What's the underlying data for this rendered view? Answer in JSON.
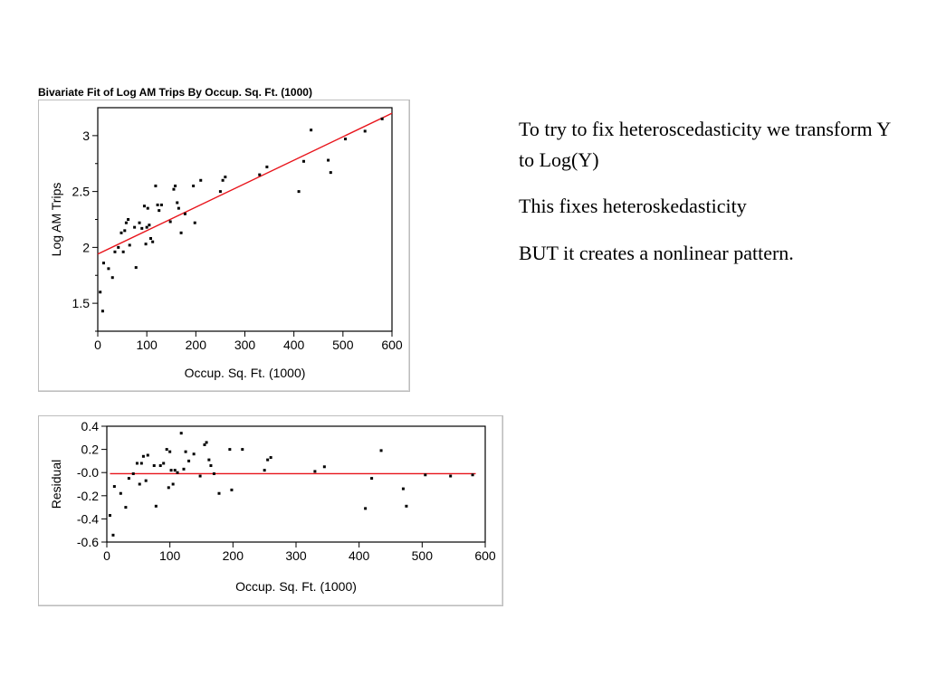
{
  "slide": {
    "paragraphs": [
      "To try to fix heteroscedasticity we transform Y to Log(Y)",
      "This fixes heteroskedasticity",
      "BUT it creates a nonlinear pattern."
    ]
  },
  "colors": {
    "fit_line": "#e8141b",
    "points": "#000000",
    "frame": "#000000"
  },
  "chart_data": [
    {
      "type": "scatter",
      "title": "Bivariate Fit of Log AM Trips By Occup. Sq. Ft. (1000)",
      "xlabel": "Occup. Sq. Ft. (1000)",
      "ylabel": "Log AM Trips",
      "xlim": [
        0,
        600
      ],
      "ylim": [
        1.25,
        3.25
      ],
      "x_ticks": [
        0,
        100,
        200,
        300,
        400,
        500,
        600
      ],
      "y_ticks": [
        1.5,
        2,
        2.5,
        3
      ],
      "x_tick_labels": [
        "0",
        "100",
        "200",
        "300",
        "400",
        "500",
        "600"
      ],
      "y_tick_labels": [
        "1.5",
        "2",
        "2.5",
        "3"
      ],
      "fit_line": {
        "x": [
          0,
          600
        ],
        "y": [
          1.94,
          3.2
        ]
      },
      "points": [
        [
          5,
          1.6
        ],
        [
          10,
          1.43
        ],
        [
          12,
          1.86
        ],
        [
          22,
          1.81
        ],
        [
          30,
          1.73
        ],
        [
          35,
          1.96
        ],
        [
          42,
          2.0
        ],
        [
          48,
          2.13
        ],
        [
          52,
          1.96
        ],
        [
          55,
          2.15
        ],
        [
          58,
          2.22
        ],
        [
          62,
          2.25
        ],
        [
          65,
          2.02
        ],
        [
          75,
          2.18
        ],
        [
          78,
          1.82
        ],
        [
          85,
          2.22
        ],
        [
          90,
          2.17
        ],
        [
          95,
          2.37
        ],
        [
          98,
          2.03
        ],
        [
          100,
          2.18
        ],
        [
          102,
          2.35
        ],
        [
          105,
          2.2
        ],
        [
          108,
          2.08
        ],
        [
          112,
          2.05
        ],
        [
          118,
          2.55
        ],
        [
          122,
          2.38
        ],
        [
          125,
          2.33
        ],
        [
          130,
          2.38
        ],
        [
          148,
          2.23
        ],
        [
          155,
          2.52
        ],
        [
          158,
          2.55
        ],
        [
          162,
          2.4
        ],
        [
          165,
          2.35
        ],
        [
          170,
          2.13
        ],
        [
          178,
          2.3
        ],
        [
          195,
          2.55
        ],
        [
          198,
          2.22
        ],
        [
          210,
          2.6
        ],
        [
          250,
          2.5
        ],
        [
          255,
          2.6
        ],
        [
          260,
          2.63
        ],
        [
          330,
          2.65
        ],
        [
          345,
          2.72
        ],
        [
          410,
          2.5
        ],
        [
          420,
          2.77
        ],
        [
          435,
          3.05
        ],
        [
          470,
          2.78
        ],
        [
          475,
          2.67
        ],
        [
          505,
          2.97
        ],
        [
          545,
          3.04
        ],
        [
          580,
          3.15
        ]
      ]
    },
    {
      "type": "scatter",
      "xlabel": "Occup. Sq. Ft. (1000)",
      "ylabel": "Residual",
      "xlim": [
        0,
        600
      ],
      "ylim": [
        -0.6,
        0.4
      ],
      "x_ticks": [
        0,
        100,
        200,
        300,
        400,
        500,
        600
      ],
      "y_ticks": [
        0.4,
        0.2,
        0,
        -0.2,
        -0.4,
        -0.6
      ],
      "x_tick_labels": [
        "0",
        "100",
        "200",
        "300",
        "400",
        "500",
        "600"
      ],
      "y_tick_labels": [
        "0.4",
        "0.2",
        "-0.0",
        "-0.2",
        "-0.4",
        "-0.6"
      ],
      "zero_line": {
        "x": [
          5,
          585
        ],
        "y": [
          -0.01,
          -0.01
        ]
      },
      "points": [
        [
          5,
          -0.37
        ],
        [
          10,
          -0.54
        ],
        [
          12,
          -0.12
        ],
        [
          22,
          -0.18
        ],
        [
          30,
          -0.3
        ],
        [
          35,
          -0.05
        ],
        [
          42,
          -0.01
        ],
        [
          48,
          0.08
        ],
        [
          52,
          -0.1
        ],
        [
          55,
          0.08
        ],
        [
          58,
          0.14
        ],
        [
          62,
          -0.07
        ],
        [
          65,
          0.15
        ],
        [
          75,
          0.06
        ],
        [
          78,
          -0.29
        ],
        [
          85,
          0.06
        ],
        [
          90,
          0.08
        ],
        [
          95,
          0.2
        ],
        [
          98,
          -0.13
        ],
        [
          100,
          0.18
        ],
        [
          102,
          0.02
        ],
        [
          105,
          -0.1
        ],
        [
          108,
          0.02
        ],
        [
          112,
          0.0
        ],
        [
          118,
          0.34
        ],
        [
          122,
          0.03
        ],
        [
          125,
          0.18
        ],
        [
          130,
          0.1
        ],
        [
          138,
          0.16
        ],
        [
          148,
          -0.03
        ],
        [
          155,
          0.24
        ],
        [
          158,
          0.26
        ],
        [
          162,
          0.11
        ],
        [
          165,
          0.06
        ],
        [
          170,
          -0.01
        ],
        [
          178,
          -0.18
        ],
        [
          195,
          0.2
        ],
        [
          198,
          -0.15
        ],
        [
          215,
          0.2
        ],
        [
          250,
          0.02
        ],
        [
          255,
          0.11
        ],
        [
          260,
          0.13
        ],
        [
          330,
          0.01
        ],
        [
          345,
          0.05
        ],
        [
          410,
          -0.31
        ],
        [
          420,
          -0.05
        ],
        [
          435,
          0.19
        ],
        [
          470,
          -0.14
        ],
        [
          475,
          -0.29
        ],
        [
          505,
          -0.02
        ],
        [
          545,
          -0.03
        ],
        [
          580,
          -0.02
        ]
      ]
    }
  ]
}
